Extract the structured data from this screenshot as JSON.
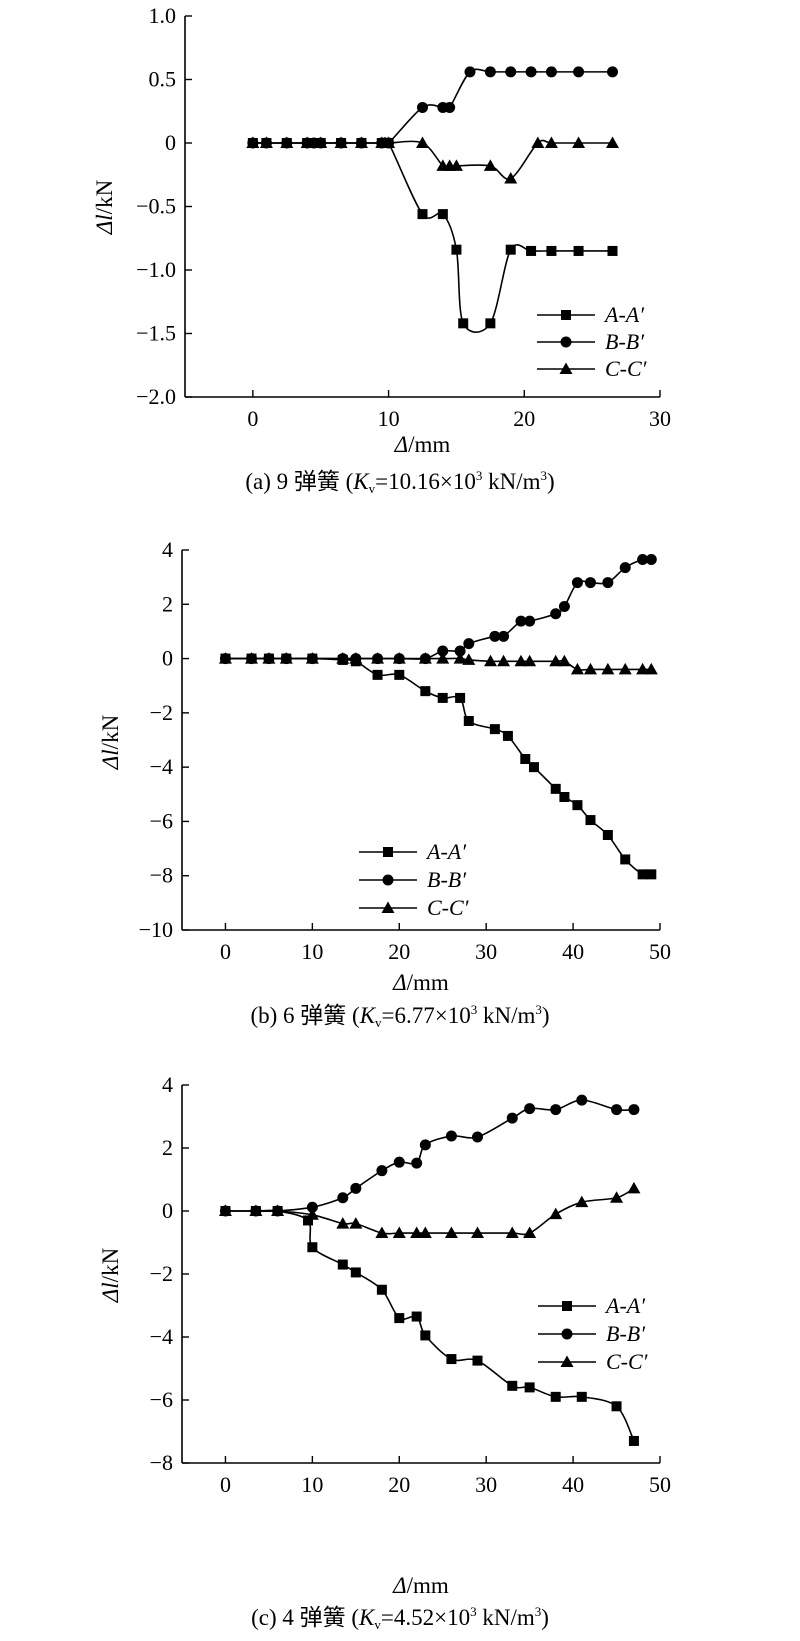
{
  "chart_data": [
    {
      "type": "line",
      "caption": {
        "prefix": "(a) 9 弹簧 (",
        "var_main": "K",
        "var_sub": "v",
        "eq": "=10.16×10",
        "exp": "3",
        "unit": " kN/m",
        "unit_exp": "3",
        "close": ")"
      },
      "xlabel": "Δ/mm",
      "ylabel": "Δl/kN",
      "xlim": [
        -5,
        30
      ],
      "ylim": [
        -2.0,
        1.0
      ],
      "x_ticks": [
        0,
        10,
        20,
        30
      ],
      "x_tick_labels": [
        "0",
        "10",
        "20",
        "30"
      ],
      "y_ticks": [
        1.0,
        0.5,
        0,
        -0.5,
        -1.0,
        -1.5,
        -2.0
      ],
      "y_tick_labels": [
        "1.0",
        "0.5",
        "0",
        "−0.5",
        "−1.0",
        "−1.5",
        "−2.0"
      ],
      "legend_position": "bottom-right",
      "grid": false,
      "series": [
        {
          "name": "A-A′",
          "marker": "square",
          "x": [
            0,
            1,
            2.5,
            4,
            5,
            6.5,
            8,
            9.5,
            10,
            12.5,
            14,
            15,
            15.5,
            17.5,
            19,
            20.5,
            22,
            24,
            26.5
          ],
          "y": [
            0,
            0,
            0,
            0,
            0,
            0,
            0,
            0,
            0,
            -0.56,
            -0.56,
            -0.84,
            -1.42,
            -1.42,
            -0.84,
            -0.85,
            -0.85,
            -0.85,
            -0.85
          ]
        },
        {
          "name": "B-B′",
          "marker": "circle",
          "x": [
            0,
            1,
            2.5,
            4,
            4.5,
            5,
            6.5,
            8,
            9.5,
            10,
            12.5,
            14,
            14.5,
            16,
            17.5,
            19,
            20.5,
            22,
            24,
            26.5
          ],
          "y": [
            0,
            0,
            0,
            0,
            0,
            0,
            0,
            0,
            0,
            0,
            0.28,
            0.28,
            0.28,
            0.56,
            0.56,
            0.56,
            0.56,
            0.56,
            0.56,
            0.56
          ]
        },
        {
          "name": "C-C′",
          "marker": "triangle",
          "x": [
            0,
            1,
            2.5,
            4,
            5,
            6.5,
            8,
            9.5,
            10,
            12.5,
            14,
            14.5,
            15,
            17.5,
            19,
            21,
            22,
            24,
            26.5
          ],
          "y": [
            0,
            0,
            0,
            0,
            0,
            0,
            0,
            0,
            0,
            0,
            -0.18,
            -0.18,
            -0.18,
            -0.18,
            -0.28,
            0,
            0,
            0,
            0
          ]
        }
      ]
    },
    {
      "type": "line",
      "caption": {
        "prefix": "(b) 6 弹簧 (",
        "var_main": "K",
        "var_sub": "v",
        "eq": "=6.77×10",
        "exp": "3",
        "unit": " kN/m",
        "unit_exp": "3",
        "close": ")"
      },
      "xlabel": "Δ/mm",
      "ylabel": "Δl/kN",
      "xlim": [
        -5,
        50
      ],
      "ylim": [
        -10,
        4
      ],
      "x_ticks": [
        0,
        10,
        20,
        30,
        40,
        50
      ],
      "x_tick_labels": [
        "0",
        "10",
        "20",
        "30",
        "40",
        "50"
      ],
      "y_ticks": [
        4,
        2,
        0,
        -2,
        -4,
        -6,
        -8,
        -10
      ],
      "y_tick_labels": [
        "4",
        "2",
        "0",
        "−2",
        "−4",
        "−6",
        "−8",
        "−10"
      ],
      "legend_position": "bottom-center",
      "grid": false,
      "series": [
        {
          "name": "A-A′",
          "marker": "square",
          "x": [
            0,
            3,
            5,
            7,
            10,
            13.5,
            15,
            17.5,
            20,
            23,
            25,
            27,
            28,
            31,
            32.5,
            34.5,
            35.5,
            38,
            39,
            40.5,
            42,
            44,
            46,
            48,
            49
          ],
          "y": [
            0,
            0,
            0,
            0,
            0,
            -0.05,
            -0.1,
            -0.6,
            -0.6,
            -1.2,
            -1.45,
            -1.45,
            -2.3,
            -2.6,
            -2.85,
            -3.7,
            -4.0,
            -4.8,
            -5.1,
            -5.4,
            -5.95,
            -6.5,
            -7.4,
            -7.95,
            -7.95
          ]
        },
        {
          "name": "B-B′",
          "marker": "circle",
          "x": [
            0,
            3,
            5,
            7,
            10,
            13.5,
            15,
            17.5,
            20,
            23,
            25,
            27,
            28,
            31,
            32,
            34,
            35,
            38,
            39,
            40.5,
            42,
            44,
            46,
            48,
            49
          ],
          "y": [
            0,
            0,
            0,
            0,
            0,
            0,
            0,
            0,
            0,
            0,
            0.28,
            0.28,
            0.55,
            0.82,
            0.82,
            1.38,
            1.38,
            1.65,
            1.92,
            2.8,
            2.8,
            2.8,
            3.35,
            3.65,
            3.65
          ]
        },
        {
          "name": "C-C′",
          "marker": "triangle",
          "x": [
            0,
            3,
            5,
            7,
            10,
            13.5,
            15,
            17.5,
            20,
            23,
            25,
            27,
            28,
            30.5,
            32,
            34,
            35,
            38,
            39,
            40.5,
            42,
            44,
            46,
            48,
            49
          ],
          "y": [
            0,
            0,
            0,
            0,
            0,
            0,
            0,
            0,
            0,
            0,
            0,
            0,
            -0.05,
            -0.1,
            -0.1,
            -0.1,
            -0.1,
            -0.1,
            -0.1,
            -0.4,
            -0.4,
            -0.4,
            -0.4,
            -0.4,
            -0.4
          ]
        }
      ]
    },
    {
      "type": "line",
      "caption": {
        "prefix": "(c) 4 弹簧 (",
        "var_main": "K",
        "var_sub": "v",
        "eq": "=4.52×10",
        "exp": "3",
        "unit": " kN/m",
        "unit_exp": "3",
        "close": ")"
      },
      "xlabel": "Δ/mm",
      "ylabel": "Δl/kN",
      "xlim": [
        -5,
        50
      ],
      "ylim": [
        -8,
        4
      ],
      "x_ticks": [
        0,
        10,
        20,
        30,
        40,
        50
      ],
      "x_tick_labels": [
        "0",
        "10",
        "20",
        "30",
        "40",
        "50"
      ],
      "y_ticks": [
        4,
        2,
        0,
        -2,
        -4,
        -6,
        -8
      ],
      "y_tick_labels": [
        "4",
        "2",
        "0",
        "−2",
        "−4",
        "−6",
        "−8"
      ],
      "legend_position": "right",
      "grid": false,
      "series": [
        {
          "name": "A-A′",
          "marker": "square",
          "x": [
            0,
            3.5,
            6,
            9.5,
            10,
            13.5,
            15,
            18,
            20,
            22,
            23,
            26,
            29,
            33,
            35,
            38,
            41,
            45,
            47
          ],
          "y": [
            0,
            0,
            0,
            -0.3,
            -1.15,
            -1.7,
            -1.95,
            -2.5,
            -3.4,
            -3.35,
            -3.95,
            -4.7,
            -4.75,
            -5.55,
            -5.6,
            -5.9,
            -5.9,
            -6.2,
            -7.3
          ]
        },
        {
          "name": "B-B′",
          "marker": "circle",
          "x": [
            0,
            3.5,
            6,
            10,
            13.5,
            15,
            18,
            20,
            22,
            23,
            26,
            29,
            33,
            35,
            38,
            41,
            45,
            47
          ],
          "y": [
            0,
            0,
            0,
            0.12,
            0.42,
            0.72,
            1.28,
            1.55,
            1.52,
            2.1,
            2.38,
            2.35,
            2.95,
            3.25,
            3.22,
            3.52,
            3.22,
            3.22
          ]
        },
        {
          "name": "C-C′",
          "marker": "triangle",
          "x": [
            0,
            3.5,
            6,
            10,
            13.5,
            15,
            18,
            20,
            22,
            23,
            26,
            29,
            33,
            35,
            38,
            41,
            45,
            47
          ],
          "y": [
            0,
            0,
            0,
            -0.12,
            -0.4,
            -0.4,
            -0.7,
            -0.7,
            -0.7,
            -0.7,
            -0.7,
            -0.7,
            -0.7,
            -0.7,
            -0.1,
            0.28,
            0.42,
            0.72
          ]
        }
      ]
    }
  ]
}
